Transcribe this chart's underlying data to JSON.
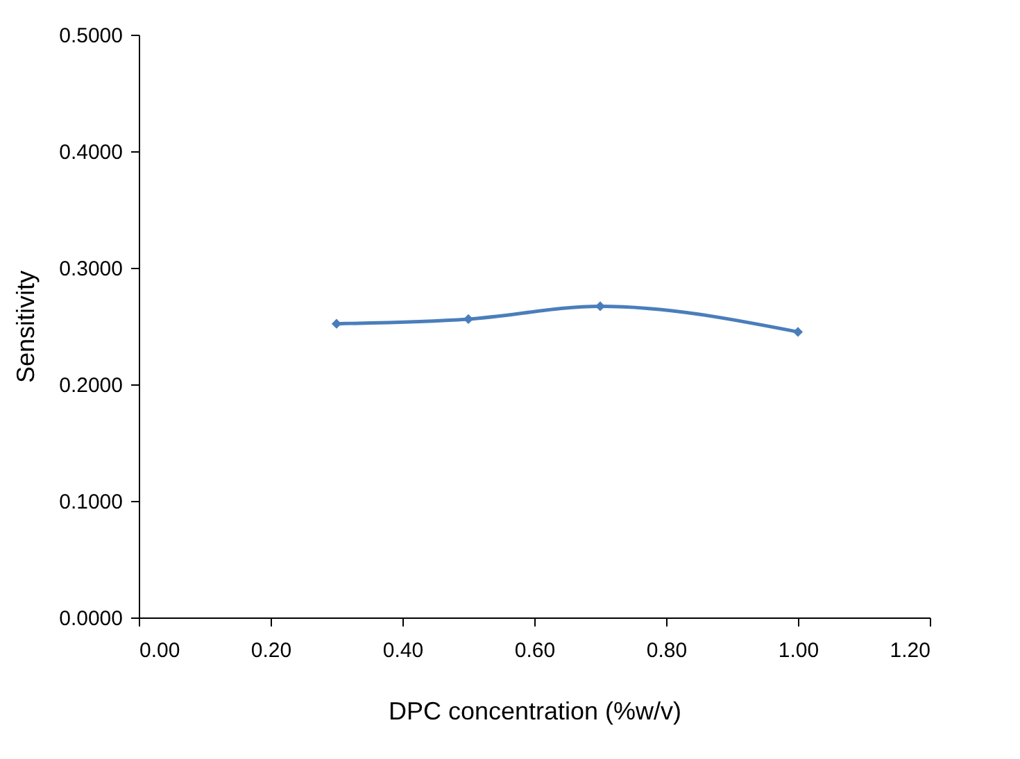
{
  "chart_data": {
    "type": "line",
    "xlabel": "DPC concentration (%w/v)",
    "ylabel": "Sensitivity",
    "x": [
      0.3,
      0.5,
      0.7,
      1.0
    ],
    "series": [
      {
        "color": "#4a7ebb",
        "values": [
          0.252,
          0.256,
          0.267,
          0.245
        ]
      }
    ],
    "xlim": [
      0,
      1.2
    ],
    "xticks": [
      {
        "value": 0,
        "label": "0.00"
      },
      {
        "value": 0.2,
        "label": "0.20"
      },
      {
        "value": 0.4,
        "label": "0.40"
      },
      {
        "value": 0.6,
        "label": "0.60"
      },
      {
        "value": 0.8,
        "label": "0.80"
      },
      {
        "value": 1,
        "label": "1.00"
      },
      {
        "value": 1.2,
        "label": "1.20"
      }
    ],
    "ylim": [
      0,
      0.5
    ],
    "yticks": [
      {
        "value": 0,
        "label": "0.0000"
      },
      {
        "value": 0.1,
        "label": "0.1000"
      },
      {
        "value": 0.2,
        "label": "0.2000"
      },
      {
        "value": 0.3,
        "label": "0.3000"
      },
      {
        "value": 0.4,
        "label": "0.4000"
      },
      {
        "value": 0.5,
        "label": "0.5000"
      }
    ],
    "marker": "diamond",
    "line_style": "solid"
  }
}
